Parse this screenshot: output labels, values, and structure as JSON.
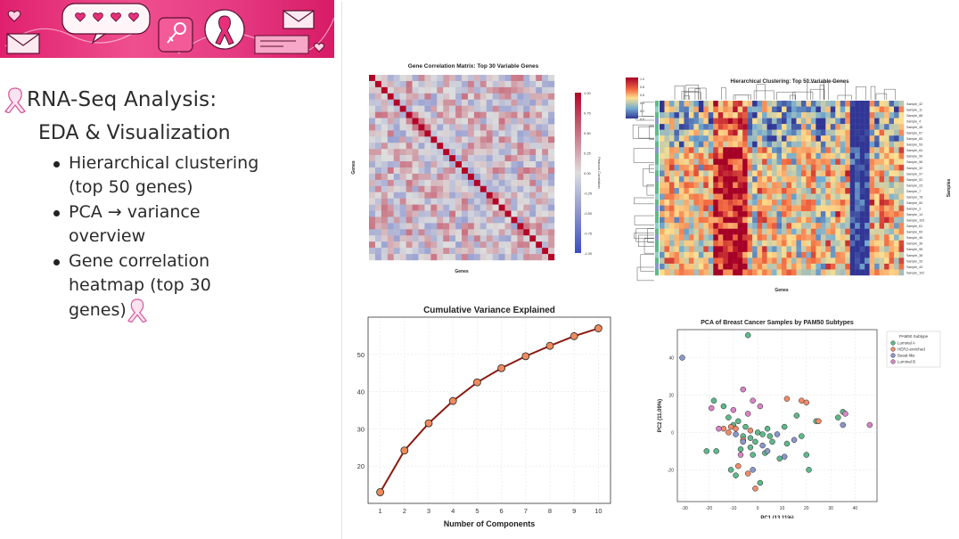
{
  "slide": {
    "title": "RNA-Seq Analysis:",
    "subtitle": "EDA & Visualization",
    "bullets": [
      {
        "line1": "Hierarchical clustering",
        "line2": "(top 50 genes)"
      },
      {
        "line1": "PCA → variance",
        "line2": "overview"
      },
      {
        "line1": "Gene correlation",
        "line2": "heatmap (top 30",
        "line3": "genes)"
      }
    ]
  },
  "banner": {
    "icon_names": [
      "heart-icon",
      "speech-bubble-icon",
      "envelope-icon",
      "female-symbol-icon",
      "awareness-ribbon-icon"
    ]
  },
  "colors": {
    "ribbon": "#d9589a",
    "banner": "#e8307a",
    "line": "#8b1a10",
    "marker": "#f08a5a"
  },
  "chart_data": [
    {
      "type": "heatmap",
      "title": "Gene Correlation Matrix: Top 30 Variable Genes",
      "xlabel": "Genes",
      "ylabel": "Genes",
      "n": 30,
      "colorbar_label": "Pearson Correlation",
      "colorbar_ticks": [
        "1.00",
        "0.75",
        "0.50",
        "0.25",
        "0.00",
        "-0.25",
        "-0.50",
        "-0.75",
        "-1.00"
      ]
    },
    {
      "type": "heatmap",
      "title": "Hierarchical Clustering: Top 50 Variable Genes",
      "xlabel": "Genes",
      "ylabel": "Samples",
      "rows": 30,
      "cols": 50,
      "row_labels": [
        "Sample_32",
        "Sample_11",
        "Sample_88",
        "Sample_4",
        "Sample_45",
        "Sample_67",
        "Sample_60",
        "Sample_53",
        "Sample_64",
        "Sample_90",
        "Sample_56",
        "Sample_32",
        "Sample_97",
        "Sample_52",
        "Sample_23",
        "Sample_7",
        "Sample_78",
        "Sample_50",
        "Sample_3",
        "Sample_14",
        "Sample_103",
        "Sample_61",
        "Sample_69",
        "Sample_46",
        "Sample_36",
        "Sample_98",
        "Sample_38",
        "Sample_33",
        "Sample_43",
        "Sample_102"
      ],
      "colorbar_ticks": [
        "1.0",
        "0.8",
        "0.6",
        "0.4",
        "0.2",
        "0.0"
      ]
    },
    {
      "type": "line",
      "title": "Cumulative Variance Explained",
      "xlabel": "Number of Components",
      "x": [
        1,
        2,
        3,
        4,
        5,
        6,
        7,
        8,
        9,
        10
      ],
      "values": [
        13.0,
        24.2,
        31.5,
        37.5,
        42.5,
        46.3,
        49.5,
        52.3,
        54.9,
        57.0
      ],
      "xlim": [
        0.5,
        10.5
      ],
      "ylim": [
        10,
        60
      ],
      "yticks": [
        20,
        30,
        40,
        50
      ]
    },
    {
      "type": "scatter",
      "title": "PCA of Breast Cancer Samples by PAM50 Subtypes",
      "xlabel": "PC1 (13.11%)",
      "ylabel": "PC2 (11.09%)",
      "xlim": [
        -33,
        49
      ],
      "ylim": [
        -37,
        55
      ],
      "xticks": [
        -30,
        -20,
        -10,
        0,
        10,
        20,
        30,
        40
      ],
      "yticks": [
        -20,
        0,
        20,
        40
      ],
      "legend_title": "PAM50 Subtype",
      "series": [
        {
          "name": "Luminal A",
          "color": "#5fb88b",
          "points": [
            [
              -4,
              52
            ],
            [
              -18,
              17
            ],
            [
              -14,
              14
            ],
            [
              -12,
              8
            ],
            [
              -8,
              6
            ],
            [
              -5,
              3
            ],
            [
              -6,
              -2
            ],
            [
              -3,
              -3
            ],
            [
              -1,
              -5
            ],
            [
              0,
              0
            ],
            [
              2,
              -1
            ],
            [
              -7,
              -9
            ],
            [
              -2,
              -12
            ],
            [
              3,
              -11
            ],
            [
              6,
              -5
            ],
            [
              9,
              -14
            ],
            [
              12,
              -6
            ],
            [
              16,
              9
            ],
            [
              18,
              -2
            ],
            [
              20,
              -12
            ],
            [
              21,
              -20
            ],
            [
              33,
              8
            ],
            [
              35,
              11
            ],
            [
              -9,
              -23
            ],
            [
              -11,
              -20
            ],
            [
              1,
              -27
            ],
            [
              -17,
              -10
            ],
            [
              4,
              2
            ],
            [
              24,
              6
            ],
            [
              -10,
              4
            ],
            [
              -3,
              -8
            ],
            [
              5,
              -2
            ],
            [
              11,
              3
            ],
            [
              -21,
              -10
            ]
          ]
        },
        {
          "name": "HER2-enriched",
          "color": "#ef8b6b",
          "points": [
            [
              -14,
              2
            ],
            [
              -12,
              0
            ],
            [
              -9,
              2
            ],
            [
              -6,
              -4
            ],
            [
              -3,
              1
            ],
            [
              -8,
              -18
            ],
            [
              -4,
              -22
            ],
            [
              -1,
              -30
            ],
            [
              12,
              18
            ],
            [
              18,
              17
            ],
            [
              20,
              16
            ],
            [
              -11,
              3
            ],
            [
              25,
              6
            ]
          ]
        },
        {
          "name": "Basal-like",
          "color": "#8a97c8",
          "points": [
            [
              -31,
              40
            ],
            [
              -6,
              -5
            ],
            [
              -2,
              -20
            ],
            [
              2,
              -7
            ],
            [
              8,
              -1
            ],
            [
              15,
              -4
            ],
            [
              35,
              4
            ],
            [
              -9,
              -1
            ],
            [
              4,
              -10
            ],
            [
              11,
              -13
            ]
          ]
        },
        {
          "name": "Luminal B",
          "color": "#d884c6",
          "points": [
            [
              -19,
              13
            ],
            [
              -6,
              23
            ],
            [
              -4,
              10
            ],
            [
              -2,
              17
            ],
            [
              1,
              14
            ],
            [
              -10,
              12
            ],
            [
              36,
              10
            ],
            [
              46,
              4
            ],
            [
              -16,
              2
            ],
            [
              -7,
              -12
            ]
          ]
        }
      ]
    }
  ]
}
